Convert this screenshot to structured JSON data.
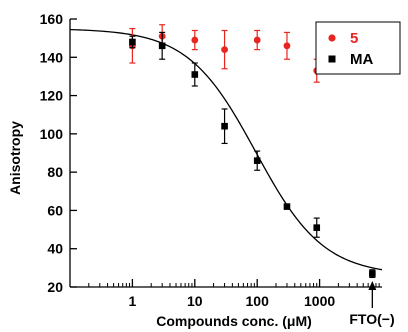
{
  "chart_data": {
    "type": "scatter",
    "xscale": "log",
    "xlim": [
      0.1,
      10000
    ],
    "ylim": [
      20,
      160
    ],
    "xlabel": "Compounds conc. (μM)",
    "ylabel": "Anisotropy",
    "xticks": [
      1,
      10,
      100,
      1000
    ],
    "xtick_labels": [
      "1",
      "10",
      "100",
      "1000"
    ],
    "yticks": [
      20,
      40,
      60,
      80,
      100,
      120,
      140,
      160
    ],
    "ytick_labels": [
      "20",
      "40",
      "60",
      "80",
      "100",
      "120",
      "140",
      "160"
    ],
    "grid": false,
    "legend_position": "top-right",
    "series": [
      {
        "name": "5",
        "color": "#e8251f",
        "marker": "circle",
        "x": [
          1,
          3,
          10,
          30,
          100,
          300,
          900
        ],
        "y": [
          146,
          151,
          149,
          144,
          149,
          146,
          133
        ],
        "yerr": [
          9,
          6,
          5,
          10,
          5,
          7,
          6
        ]
      },
      {
        "name": "MA",
        "color": "#000000",
        "marker": "square",
        "x": [
          1,
          3,
          10,
          30,
          100,
          300,
          900,
          7000
        ],
        "y": [
          148,
          146,
          131,
          104,
          86,
          62,
          51,
          27
        ],
        "yerr": [
          3,
          7,
          6,
          9,
          5,
          1,
          5,
          2
        ]
      }
    ],
    "fit": {
      "series": "MA",
      "top": 155,
      "bottom": 26,
      "ic50": 95,
      "hill": 0.8
    },
    "annotation": {
      "text": "FTO(−)",
      "x": 7000
    }
  }
}
